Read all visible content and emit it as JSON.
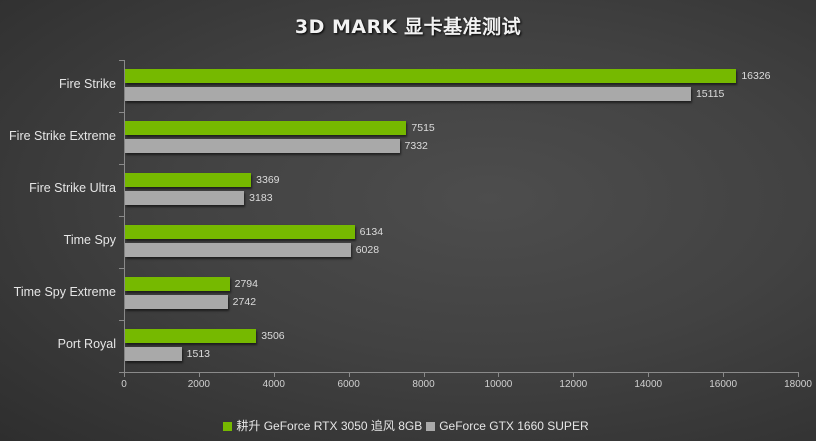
{
  "title": "3D MARK 显卡基准测试",
  "colors": {
    "series1": "#76b900",
    "series2": "#a9a9a9",
    "background": "#444444"
  },
  "legend": [
    {
      "label": "耕升 GeForce RTX 3050 追风 8GB",
      "color": "#76b900"
    },
    {
      "label": "GeForce GTX 1660 SUPER",
      "color": "#a9a9a9"
    }
  ],
  "chart_data": {
    "type": "bar",
    "orientation": "horizontal",
    "title": "3D MARK 显卡基准测试",
    "xlabel": "",
    "ylabel": "",
    "categories": [
      "Fire Strike",
      "Fire Strike Extreme",
      "Fire Strike Ultra",
      "Time Spy",
      "Time Spy Extreme",
      "Port Royal"
    ],
    "series": [
      {
        "name": "耕升 GeForce RTX 3050 追风 8GB",
        "color": "#76b900",
        "values": [
          16326,
          7515,
          3369,
          6134,
          2794,
          3506
        ]
      },
      {
        "name": "GeForce GTX 1660 SUPER",
        "color": "#a9a9a9",
        "values": [
          15115,
          7332,
          3183,
          6028,
          2742,
          1513
        ]
      }
    ],
    "xlim": [
      0,
      18000
    ],
    "xticks": [
      0,
      2000,
      4000,
      6000,
      8000,
      10000,
      12000,
      14000,
      16000,
      18000
    ],
    "grid": false,
    "legend_position": "bottom",
    "data_labels": true
  }
}
